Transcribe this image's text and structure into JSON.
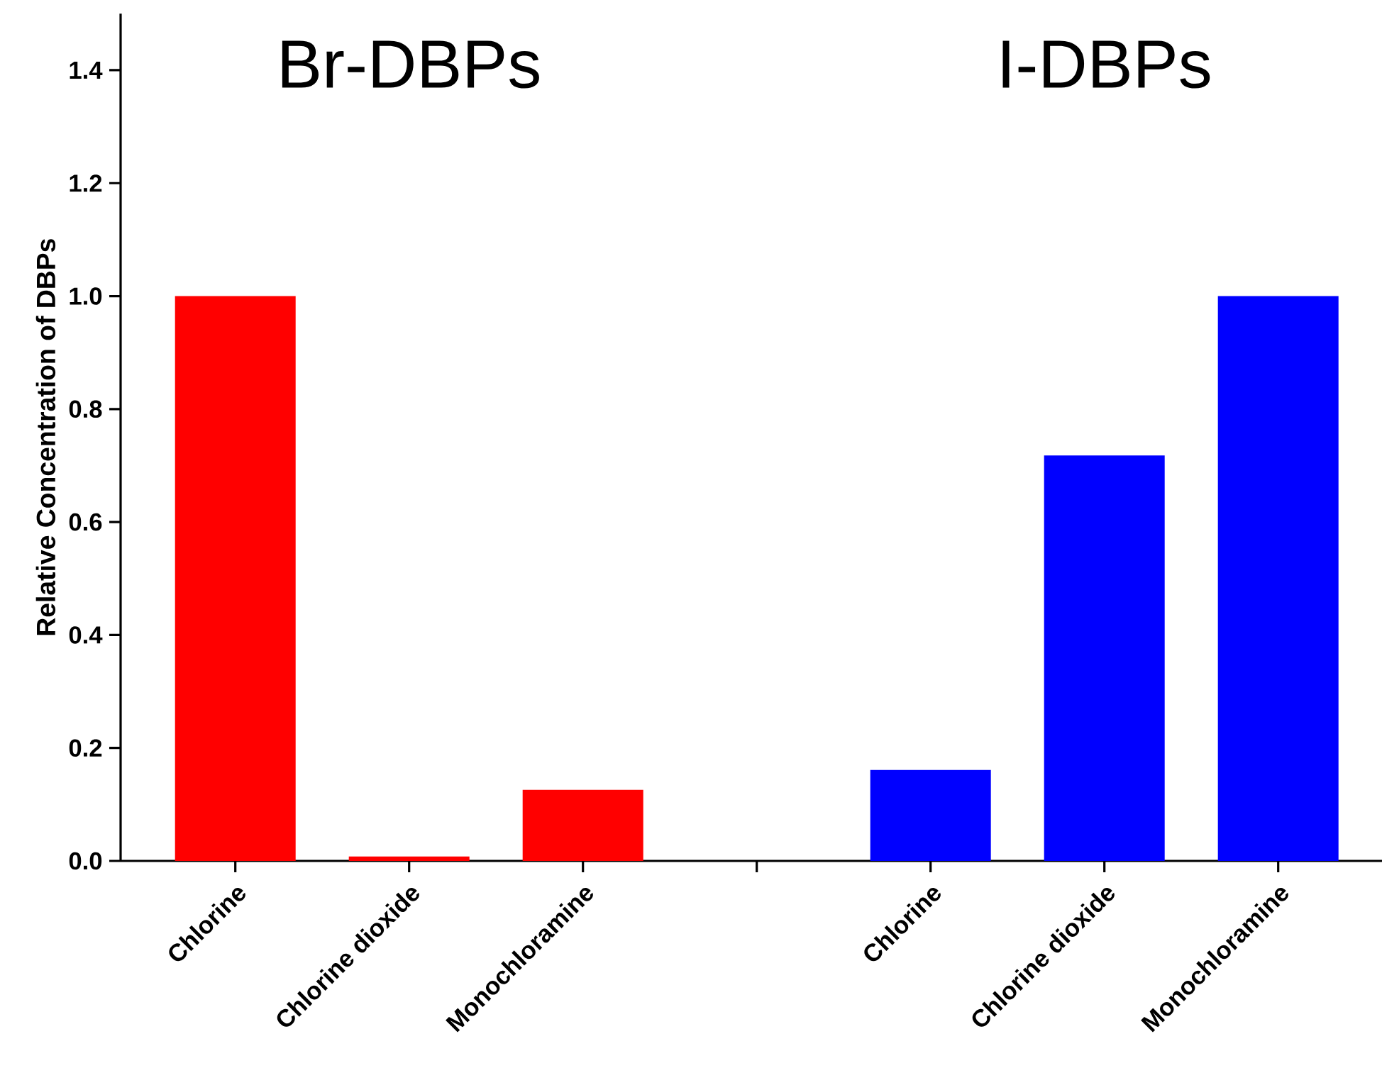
{
  "chart_data": {
    "type": "bar",
    "ylabel": "Relative Concentration of DBPs",
    "categories": [
      "Chlorine",
      "Chlorine dioxide",
      "Monochloramine",
      null,
      "Chlorine",
      "Chlorine dioxide",
      "Monochloramine"
    ],
    "values": [
      1.0,
      0.008,
      0.126,
      null,
      0.161,
      0.718,
      1.0
    ],
    "colors": [
      "#ff0000",
      "#ff0000",
      "#ff0000",
      null,
      "#0000ff",
      "#0000ff",
      "#0000ff"
    ],
    "ylim": [
      0,
      1.5
    ],
    "yticks": [
      {
        "value": 0,
        "label": "0.0"
      },
      0.2,
      0.4,
      0.6,
      0.8,
      {
        "value": 1,
        "label": "1.0"
      },
      1.2,
      1.4
    ],
    "annotations": [
      "Br-DBPs",
      "I-DBPs"
    ]
  }
}
